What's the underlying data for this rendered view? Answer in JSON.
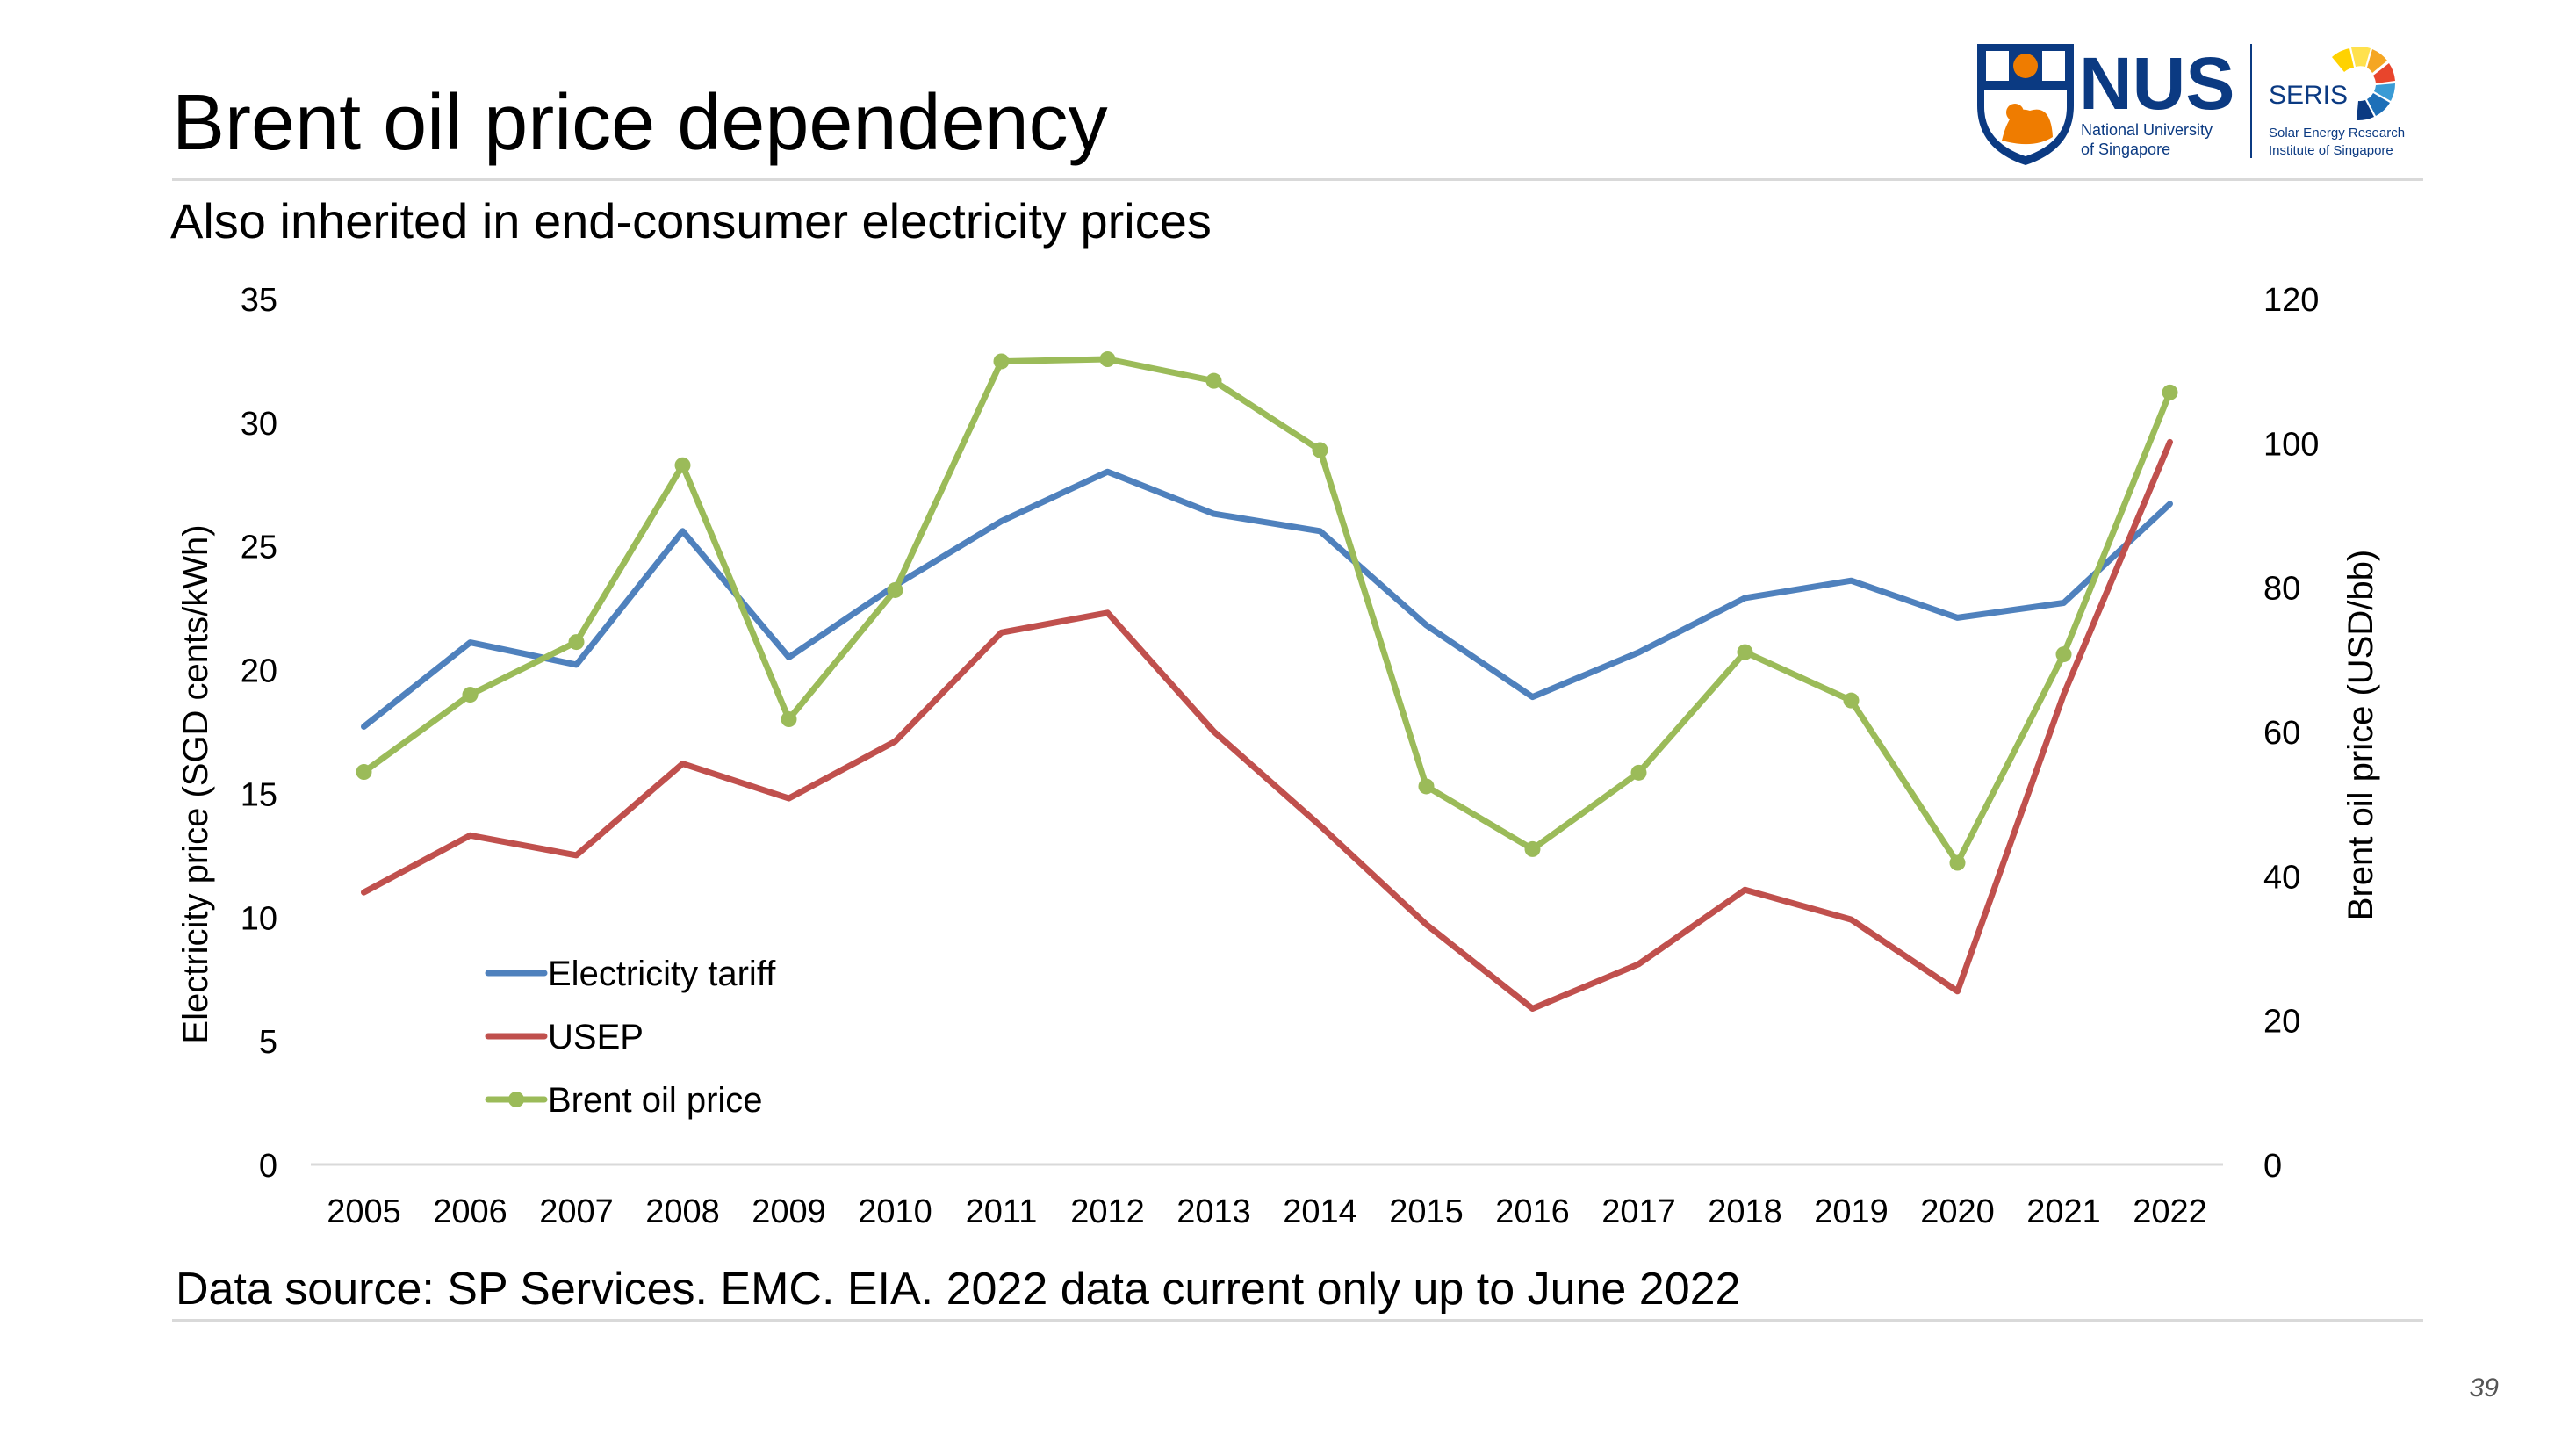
{
  "slide": {
    "title": "Brent oil price dependency",
    "subtitle": "Also inherited in end-consumer electricity prices",
    "footer": "Data source: SP Services. EMC. EIA. 2022 data current only up to June 2022",
    "page_number": "39"
  },
  "logo": {
    "nus_text": "NUS",
    "nus_line1": "National University",
    "nus_line2": "of Singapore",
    "seris_text": "SERIS",
    "seris_line1": "Solar Energy Research",
    "seris_line2": "Institute of Singapore",
    "nus_blue": "#0b3a82",
    "nus_orange": "#ef7c00"
  },
  "chart_data": {
    "type": "line",
    "categories": [
      "2005",
      "2006",
      "2007",
      "2008",
      "2009",
      "2010",
      "2011",
      "2012",
      "2013",
      "2014",
      "2015",
      "2016",
      "2017",
      "2018",
      "2019",
      "2020",
      "2021",
      "2022"
    ],
    "y_left": {
      "label": "Electricity price (SGD cents/kWh)",
      "min": 0,
      "max": 35,
      "ticks": [
        0,
        5,
        10,
        15,
        20,
        25,
        30,
        35
      ]
    },
    "y_right": {
      "label": "Brent oil price (USD/bb)",
      "min": 0,
      "max": 120,
      "ticks": [
        0,
        20,
        40,
        60,
        80,
        100,
        120
      ]
    },
    "grid": false,
    "legend_position": "bottom-left",
    "series": [
      {
        "name": "Electricity tariff",
        "axis": "left",
        "color": "#4f81bd",
        "markers": false,
        "values": [
          17.7,
          21.1,
          20.2,
          25.6,
          20.5,
          23.4,
          26.0,
          28.0,
          26.3,
          25.6,
          21.8,
          18.9,
          20.7,
          22.9,
          23.6,
          22.1,
          22.7,
          26.7
        ]
      },
      {
        "name": "USEP",
        "axis": "left",
        "color": "#c0504d",
        "markers": false,
        "values": [
          11.0,
          13.3,
          12.5,
          16.2,
          14.8,
          17.1,
          21.5,
          22.3,
          17.5,
          13.7,
          9.7,
          6.3,
          8.1,
          11.1,
          9.9,
          7.0,
          19.0,
          29.2
        ]
      },
      {
        "name": "Brent oil price",
        "axis": "right",
        "color": "#9bbb59",
        "markers": true,
        "values": [
          54.4,
          65.1,
          72.4,
          96.9,
          61.7,
          79.6,
          111.3,
          111.6,
          108.6,
          99.0,
          52.4,
          43.7,
          54.3,
          71.0,
          64.3,
          41.8,
          70.7,
          107.0
        ]
      }
    ]
  }
}
